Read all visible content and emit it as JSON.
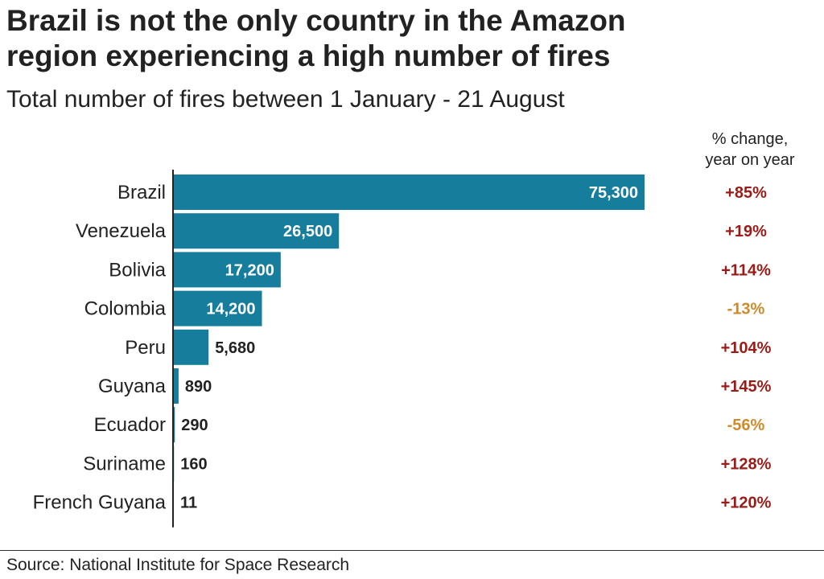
{
  "chart_data": {
    "type": "bar",
    "orientation": "horizontal",
    "title_line1": "Brazil is not the only country in the Amazon",
    "title_line2": "region experiencing a high number of fires",
    "subtitle": "Total number of fires between 1 January - 21 August",
    "change_header_line1": "% change,",
    "change_header_line2": "year on year",
    "categories": [
      "Brazil",
      "Venezuela",
      "Bolivia",
      "Colombia",
      "Peru",
      "Guyana",
      "Ecuador",
      "Suriname",
      "French Guyana"
    ],
    "values": [
      75300,
      26500,
      17200,
      14200,
      5680,
      890,
      290,
      160,
      11
    ],
    "value_labels": [
      "75,300",
      "26,500",
      "17,200",
      "14,200",
      "5,680",
      "890",
      "290",
      "160",
      "11"
    ],
    "change_labels": [
      "+85%",
      "+19%",
      "+114%",
      "-13%",
      "+104%",
      "+145%",
      "-56%",
      "+128%",
      "+120%"
    ],
    "xlim": [
      0,
      75300
    ],
    "grid": false,
    "source": "Source: National Institute for Space Research"
  },
  "colors": {
    "bar": "#167d9c",
    "text": "#222222",
    "increase": "#9b1b16",
    "decrease": "#cf8a2b",
    "label_inside": "#ffffff"
  }
}
